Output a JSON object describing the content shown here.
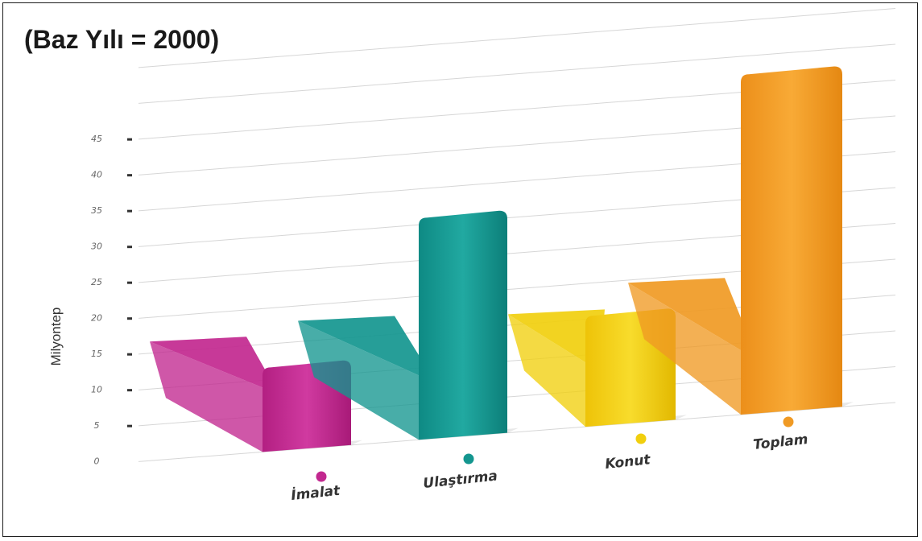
{
  "chart_data": {
    "type": "bar",
    "title": "(Baz Yılı = 2000)",
    "ylabel": "Milyontep",
    "xlabel": "",
    "y_ticks": [
      "0",
      "5",
      "10",
      "15",
      "20",
      "25",
      "30",
      "35",
      "40",
      "45"
    ],
    "ylim": [
      0,
      45
    ],
    "grid": true,
    "categories": [
      "İmalat",
      "Ulaştırma",
      "Konut",
      "Toplam"
    ],
    "series": [
      {
        "values": [
          15.4,
          16.6,
          15.7,
          18.4
        ]
      },
      {
        "values": [
          11.8,
          31.0,
          15.5,
          47.5
        ]
      }
    ],
    "colors": [
      "#c2288f",
      "#14968f",
      "#f1cf0e",
      "#f09a24"
    ]
  }
}
